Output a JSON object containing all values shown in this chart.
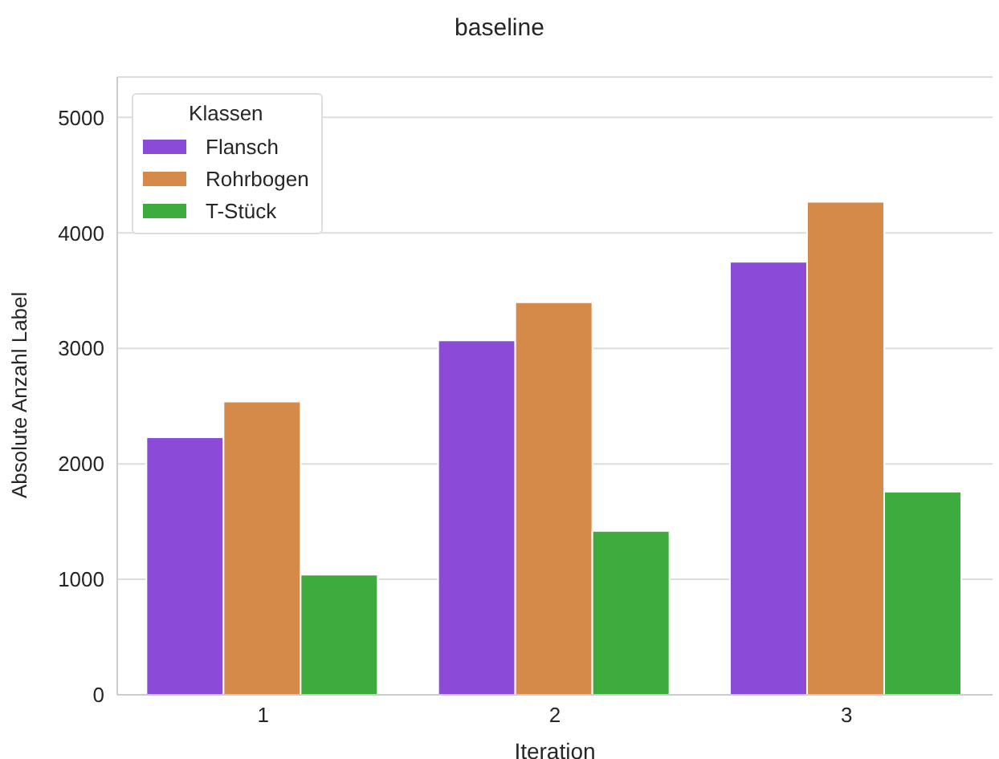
{
  "chart_data": {
    "type": "bar",
    "title": "baseline",
    "xlabel": "Iteration",
    "ylabel": "Absolute Anzahl Label",
    "legend_title": "Klassen",
    "categories": [
      "1",
      "2",
      "3"
    ],
    "series": [
      {
        "name": "Flansch",
        "color": "#8b4bd8",
        "values": [
          2230,
          3070,
          3750
        ]
      },
      {
        "name": "Rohrbogen",
        "color": "#d68a4a",
        "values": [
          2540,
          3400,
          4270
        ]
      },
      {
        "name": "T-Stück",
        "color": "#3dab3d",
        "values": [
          1040,
          1420,
          1760
        ]
      }
    ],
    "ylim": [
      0,
      5350
    ],
    "yticks": [
      0,
      1000,
      2000,
      3000,
      4000,
      5000
    ],
    "grid": "y",
    "legend": "top left"
  }
}
